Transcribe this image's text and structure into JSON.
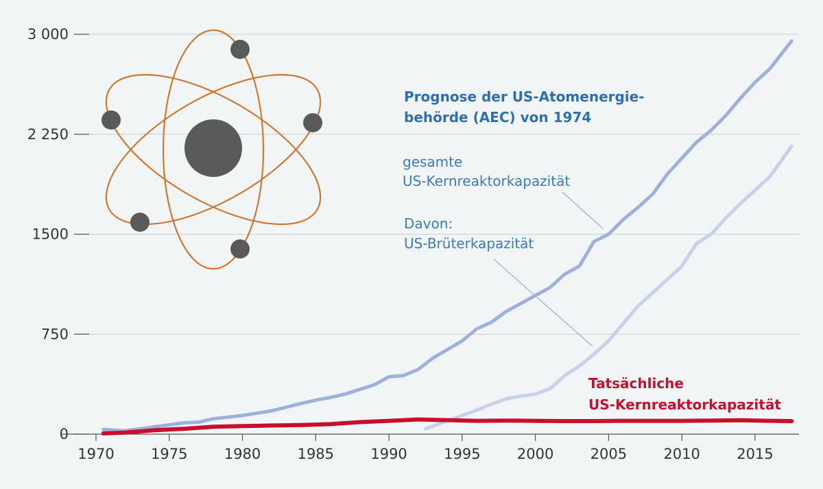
{
  "chart_data": {
    "type": "line",
    "title": "",
    "xlabel": "",
    "ylabel": "",
    "xlim": [
      1970,
      2018
    ],
    "ylim": [
      0,
      3000
    ],
    "x_ticks": [
      1970,
      1975,
      1980,
      1985,
      1990,
      1995,
      2000,
      2005,
      2010,
      2015
    ],
    "x_tick_labels": [
      "1970",
      "1975",
      "1980",
      "1985",
      "1990",
      "1995",
      "2000",
      "2005",
      "2010",
      "2015"
    ],
    "y_ticks": [
      0,
      750,
      1500,
      2250,
      3000
    ],
    "y_tick_labels": [
      "0",
      "750",
      "1500",
      "2 250",
      "3 000"
    ],
    "grid": true,
    "annotations": {
      "forecast_title": [
        "Prognose der US-Atomenergie-",
        "behörde (AEC) von 1974"
      ],
      "total_label": [
        "gesamte",
        "US-Kernreaktorkapazität"
      ],
      "breeder_label": [
        "Davon:",
        "US-Brüterkapazität"
      ],
      "actual_label": [
        "Tatsächliche",
        "US-Kernreaktorkapazität"
      ]
    },
    "series": [
      {
        "name": "gesamte US-Kernreaktorkapazität (Prognose)",
        "color": "#9db1da",
        "x": [
          1970.5,
          1972,
          1974,
          1976,
          1977,
          1978,
          1980,
          1982,
          1984,
          1985,
          1986,
          1987,
          1988,
          1989,
          1990,
          1991,
          1992,
          1993,
          1994,
          1995,
          1996,
          1997,
          1998,
          1999,
          2000,
          2001,
          2002,
          2003,
          2004,
          2005,
          2006,
          2007,
          2008,
          2009,
          2010,
          2011,
          2012,
          2013,
          2014,
          2015,
          2016,
          2017.5
        ],
        "values": [
          35,
          25,
          55,
          85,
          90,
          115,
          140,
          175,
          230,
          255,
          275,
          300,
          335,
          370,
          430,
          440,
          485,
          570,
          635,
          700,
          790,
          840,
          920,
          980,
          1040,
          1100,
          1200,
          1260,
          1445,
          1500,
          1610,
          1700,
          1800,
          1950,
          2070,
          2190,
          2280,
          2390,
          2520,
          2640,
          2740,
          2950
        ]
      },
      {
        "name": "Davon: US-Brüterkapazität (Prognose)",
        "color": "#c5d2ea",
        "x": [
          1992.5,
          1994,
          1996,
          1997,
          1998,
          1999,
          2000,
          2001,
          2002,
          2003,
          2004,
          2005,
          2006,
          2007,
          2008,
          2009,
          2010,
          2011,
          2012,
          2013,
          2014,
          2015,
          2016,
          2017.5
        ],
        "values": [
          40,
          100,
          180,
          225,
          265,
          285,
          300,
          340,
          440,
          510,
          600,
          700,
          830,
          960,
          1060,
          1160,
          1260,
          1430,
          1500,
          1620,
          1730,
          1830,
          1930,
          2160
        ]
      },
      {
        "name": "Tatsächliche US-Kernreaktorkapazität",
        "color": "#c8102e",
        "x": [
          1970.5,
          1972,
          1974,
          1976,
          1978,
          1980,
          1982,
          1984,
          1986,
          1988,
          1990,
          1992,
          1994,
          1996,
          1998,
          2000,
          2002,
          2004,
          2006,
          2008,
          2010,
          2012,
          2014,
          2016,
          2017.5
        ],
        "values": [
          5,
          12,
          30,
          40,
          55,
          60,
          65,
          68,
          75,
          90,
          100,
          110,
          105,
          100,
          102,
          100,
          98,
          98,
          100,
          100,
          100,
          102,
          104,
          100,
          98
        ]
      }
    ]
  },
  "illustration": {
    "name": "atom-illustration",
    "orbit_color": "#d0772f",
    "particle_color": "#5a5a5a"
  }
}
